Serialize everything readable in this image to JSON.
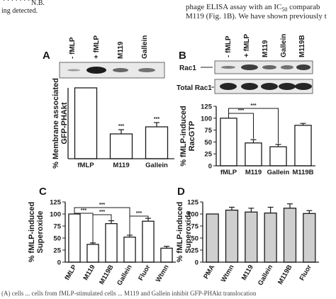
{
  "text_fragments": {
    "top_left_row": "· · · · · · ·",
    "top_left_note": "ing detected.",
    "top_left_nb": "N.B.",
    "top_right_line1": "phage ELISA assay with an IC",
    "top_right_sub": "50",
    "top_right_line1_end": " comparab",
    "top_right_line2": "M119 (Fig. 1B). We have shown previously t",
    "bottom_caption": "(A) cells ... cells from fMLP-stimulated cells ... M119 and Gallein inhibit GFP-PHAkt translocation"
  },
  "panels": {
    "A": {
      "letter": "A",
      "blot_labels": [
        "- fMLP",
        "+ fMLP",
        "M119",
        "Gallein"
      ],
      "chart_data": {
        "type": "bar",
        "categories": [
          "fMLP",
          "M119",
          "Gallein"
        ],
        "values": [
          100,
          35,
          45
        ],
        "errors": [
          0,
          6,
          6
        ],
        "significance": [
          "",
          "***",
          "***"
        ],
        "ylabel": "% Membrane associated GFP-PHAkt",
        "ylim": [
          0,
          100
        ],
        "bar_color": "#ffffff"
      }
    },
    "B": {
      "letter": "B",
      "blot_labels": [
        "- fMLP",
        "+ fMLP",
        "M119",
        "Gallein",
        "M119B"
      ],
      "row_labels": [
        "Rac1",
        "Total Rac1"
      ],
      "chart_data": {
        "type": "bar",
        "categories": [
          "fMLP",
          "M119",
          "Gallein",
          "M119B"
        ],
        "values": [
          100,
          48,
          40,
          85
        ],
        "errors": [
          0,
          7,
          5,
          4
        ],
        "significance_brackets": [
          {
            "from": 0,
            "to": 1,
            "label": "***"
          },
          {
            "from": 0,
            "to": 2,
            "label": "***"
          }
        ],
        "ylabel": "% fMLP-induced RacGTP",
        "yticks": [
          0,
          25,
          50,
          75,
          100,
          125
        ],
        "ylim": [
          0,
          125
        ],
        "bar_color": "#ffffff"
      }
    },
    "C": {
      "letter": "C",
      "chart_data": {
        "type": "bar",
        "categories": [
          "fMLP",
          "M119",
          "M119B",
          "Gallein",
          "Fluor",
          "Wtmn"
        ],
        "values": [
          100,
          37,
          80,
          52,
          85,
          29
        ],
        "errors": [
          0,
          3,
          6,
          4,
          6,
          4
        ],
        "significance_brackets": [
          {
            "from": 0,
            "to": 3,
            "label": "***"
          },
          {
            "from": 0,
            "to": 1,
            "label": "***"
          },
          {
            "from": 1,
            "to": 2,
            "label": "***"
          },
          {
            "from": 3,
            "to": 4,
            "label": "***"
          }
        ],
        "ylabel": "% fMLP-induced Superoxide",
        "yticks": [
          0,
          25,
          50,
          75,
          100,
          125
        ],
        "ylim": [
          0,
          125
        ],
        "bar_color": "#ffffff"
      }
    },
    "D": {
      "letter": "D",
      "chart_data": {
        "type": "bar",
        "categories": [
          "PMA",
          "Wtmn",
          "M119",
          "Gallein",
          "M119B",
          "Fluor"
        ],
        "values": [
          100,
          108,
          104,
          102,
          112,
          101
        ],
        "errors": [
          0,
          6,
          8,
          12,
          9,
          6
        ],
        "ylabel": "% fMLP-induced Superoxide",
        "yticks": [
          0,
          25,
          50,
          75,
          100,
          125
        ],
        "ylim": [
          0,
          125
        ],
        "bar_color": "#cfcfcf"
      }
    }
  }
}
